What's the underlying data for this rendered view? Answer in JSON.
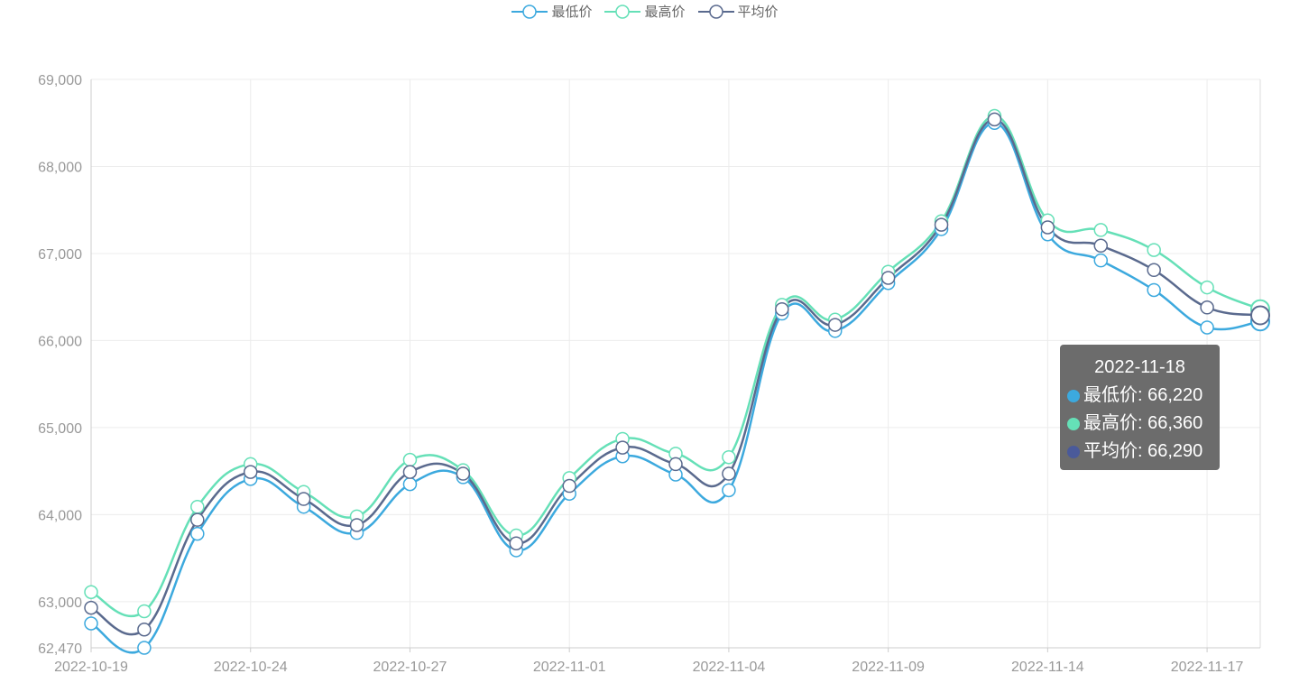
{
  "legend": {
    "items": [
      {
        "label": "最低价",
        "color": "#3ca9de"
      },
      {
        "label": "最高价",
        "color": "#65e0b7"
      },
      {
        "label": "平均价",
        "color": "#5a6a8e"
      }
    ]
  },
  "tooltip": {
    "title": "2022-11-18",
    "rows": [
      {
        "label": "最低价: 66,220",
        "color": "#3ca9de"
      },
      {
        "label": "最高价: 66,360",
        "color": "#65e0b7"
      },
      {
        "label": "平均价: 66,290",
        "color": "#4a5a9a"
      }
    ]
  },
  "chart_data": {
    "type": "line",
    "x": [
      "2022-10-19",
      "2022-10-20",
      "2022-10-21",
      "2022-10-24",
      "2022-10-25",
      "2022-10-26",
      "2022-10-27",
      "2022-10-28",
      "2022-10-31",
      "2022-11-01",
      "2022-11-02",
      "2022-11-03",
      "2022-11-04",
      "2022-11-07",
      "2022-11-08",
      "2022-11-09",
      "2022-11-10",
      "2022-11-11",
      "2022-11-14",
      "2022-11-15",
      "2022-11-16",
      "2022-11-17",
      "2022-11-18"
    ],
    "x_tick_labels": [
      "2022-10-19",
      "2022-10-24",
      "2022-10-27",
      "2022-11-01",
      "2022-11-04",
      "2022-11-09",
      "2022-11-14",
      "2022-11-17"
    ],
    "x_tick_every": 3,
    "y_ticks": [
      "62,470",
      "63,000",
      "64,000",
      "65,000",
      "66,000",
      "67,000",
      "68,000",
      "69,000"
    ],
    "ylim": [
      62470,
      69000
    ],
    "grid": true,
    "legend_position": "top-center",
    "series": [
      {
        "name": "最低价",
        "color": "#3ca9de",
        "values": [
          62750,
          62470,
          63780,
          64410,
          64090,
          63790,
          64350,
          64430,
          63590,
          64240,
          64670,
          64460,
          64280,
          66310,
          66110,
          66660,
          67280,
          68500,
          67220,
          66920,
          66580,
          66150,
          66220
        ]
      },
      {
        "name": "最高价",
        "color": "#65e0b7",
        "values": [
          63110,
          62890,
          64090,
          64580,
          64260,
          63980,
          64630,
          64510,
          63760,
          64420,
          64870,
          64700,
          64660,
          66410,
          66240,
          66790,
          67370,
          68580,
          67380,
          67270,
          67040,
          66610,
          66360
        ]
      },
      {
        "name": "平均价",
        "color": "#5a6a8e",
        "values": [
          62930,
          62680,
          63940,
          64490,
          64180,
          63880,
          64490,
          64470,
          63670,
          64330,
          64770,
          64580,
          64470,
          66360,
          66180,
          66720,
          67330,
          68540,
          67300,
          67090,
          66810,
          66380,
          66290
        ]
      }
    ]
  }
}
